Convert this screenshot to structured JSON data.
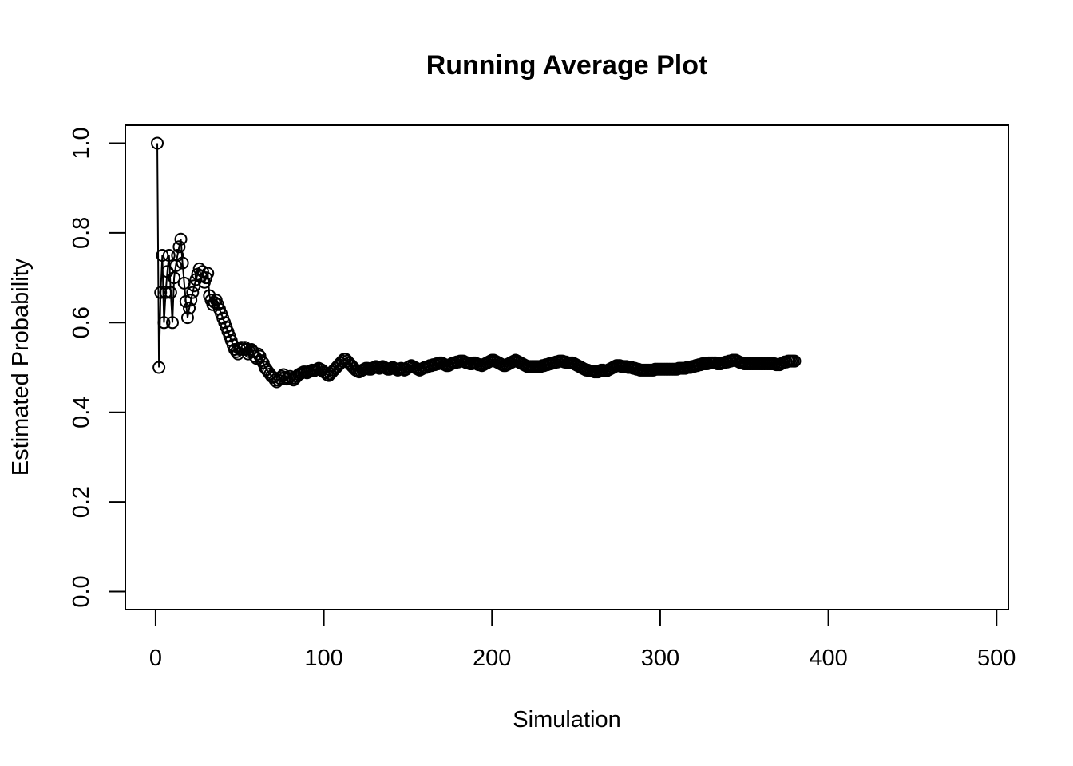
{
  "chart_data": {
    "type": "line",
    "title": "Running Average Plot",
    "xlabel": "Simulation",
    "ylabel": "Estimated Probability",
    "xlim": [
      -18,
      507
    ],
    "ylim": [
      -0.04,
      1.04
    ],
    "xticks": [
      0,
      100,
      200,
      300,
      400,
      500
    ],
    "yticks": [
      0.0,
      0.2,
      0.4,
      0.6,
      0.8,
      1.0
    ],
    "xtick_labels": [
      "0",
      "100",
      "200",
      "300",
      "400",
      "500"
    ],
    "ytick_labels": [
      "0.0",
      "0.2",
      "0.4",
      "0.6",
      "0.8",
      "1.0"
    ],
    "grid": false,
    "legend": "none",
    "marker": "open-circle",
    "x_start": 1,
    "y": [
      1.0,
      0.5,
      0.667,
      0.75,
      0.6,
      0.667,
      0.714,
      0.75,
      0.667,
      0.6,
      0.7,
      0.727,
      0.75,
      0.769,
      0.786,
      0.733,
      0.688,
      0.647,
      0.611,
      0.632,
      0.65,
      0.667,
      0.682,
      0.696,
      0.708,
      0.72,
      0.704,
      0.714,
      0.69,
      0.7,
      0.71,
      0.66,
      0.65,
      0.64,
      0.645,
      0.65,
      0.64,
      0.63,
      0.62,
      0.61,
      0.6,
      0.59,
      0.58,
      0.57,
      0.56,
      0.55,
      0.54,
      0.535,
      0.53,
      0.54,
      0.545,
      0.54,
      0.545,
      0.54,
      0.53,
      0.535,
      0.54,
      0.535,
      0.525,
      0.52,
      0.53,
      0.525,
      0.515,
      0.51,
      0.5,
      0.495,
      0.49,
      0.485,
      0.48,
      0.478,
      0.472,
      0.468,
      0.472,
      0.476,
      0.48,
      0.484,
      0.478,
      0.474,
      0.476,
      0.48,
      0.476,
      0.472,
      0.476,
      0.48,
      0.484,
      0.486,
      0.488,
      0.49,
      0.49,
      0.488,
      0.49,
      0.492,
      0.494,
      0.492,
      0.494,
      0.496,
      0.498,
      0.496,
      0.494,
      0.49,
      0.488,
      0.484,
      0.482,
      0.486,
      0.49,
      0.494,
      0.498,
      0.502,
      0.506,
      0.51,
      0.514,
      0.518,
      0.518,
      0.514,
      0.51,
      0.506,
      0.502,
      0.498,
      0.494,
      0.492,
      0.49,
      0.492,
      0.494,
      0.496,
      0.498,
      0.498,
      0.496,
      0.496,
      0.498,
      0.5,
      0.502,
      0.5,
      0.498,
      0.5,
      0.502,
      0.5,
      0.498,
      0.496,
      0.496,
      0.498,
      0.5,
      0.498,
      0.496,
      0.494,
      0.496,
      0.498,
      0.496,
      0.494,
      0.496,
      0.5,
      0.502,
      0.504,
      0.502,
      0.5,
      0.498,
      0.496,
      0.494,
      0.496,
      0.498,
      0.5,
      0.5,
      0.502,
      0.504,
      0.504,
      0.506,
      0.506,
      0.508,
      0.508,
      0.51,
      0.51,
      0.508,
      0.506,
      0.504,
      0.504,
      0.506,
      0.508,
      0.51,
      0.51,
      0.512,
      0.512,
      0.514,
      0.514,
      0.514,
      0.512,
      0.51,
      0.51,
      0.508,
      0.508,
      0.51,
      0.51,
      0.508,
      0.506,
      0.506,
      0.504,
      0.506,
      0.508,
      0.51,
      0.512,
      0.514,
      0.516,
      0.516,
      0.514,
      0.512,
      0.51,
      0.508,
      0.506,
      0.504,
      0.504,
      0.506,
      0.508,
      0.51,
      0.512,
      0.514,
      0.516,
      0.514,
      0.512,
      0.51,
      0.508,
      0.506,
      0.504,
      0.502,
      0.502,
      0.502,
      0.502,
      0.502,
      0.502,
      0.502,
      0.502,
      0.502,
      0.504,
      0.504,
      0.506,
      0.506,
      0.508,
      0.508,
      0.51,
      0.51,
      0.512,
      0.512,
      0.514,
      0.514,
      0.514,
      0.512,
      0.512,
      0.51,
      0.51,
      0.51,
      0.51,
      0.508,
      0.506,
      0.504,
      0.502,
      0.5,
      0.498,
      0.496,
      0.494,
      0.494,
      0.492,
      0.492,
      0.492,
      0.49,
      0.49,
      0.49,
      0.492,
      0.494,
      0.494,
      0.492,
      0.492,
      0.494,
      0.496,
      0.498,
      0.5,
      0.502,
      0.504,
      0.504,
      0.504,
      0.502,
      0.502,
      0.502,
      0.502,
      0.5,
      0.5,
      0.5,
      0.498,
      0.498,
      0.496,
      0.496,
      0.494,
      0.494,
      0.494,
      0.494,
      0.494,
      0.494,
      0.494,
      0.494,
      0.494,
      0.496,
      0.496,
      0.496,
      0.496,
      0.496,
      0.496,
      0.496,
      0.496,
      0.496,
      0.496,
      0.496,
      0.496,
      0.496,
      0.496,
      0.498,
      0.498,
      0.498,
      0.498,
      0.498,
      0.5,
      0.5,
      0.5,
      0.502,
      0.502,
      0.504,
      0.504,
      0.506,
      0.506,
      0.508,
      0.508,
      0.508,
      0.508,
      0.51,
      0.51,
      0.51,
      0.51,
      0.51,
      0.508,
      0.508,
      0.508,
      0.51,
      0.51,
      0.512,
      0.512,
      0.514,
      0.514,
      0.516,
      0.516,
      0.516,
      0.514,
      0.512,
      0.51,
      0.51,
      0.508,
      0.508,
      0.508,
      0.508,
      0.508,
      0.508,
      0.508,
      0.508,
      0.508,
      0.508,
      0.508,
      0.508,
      0.508,
      0.508,
      0.508,
      0.508,
      0.508,
      0.508,
      0.508,
      0.506,
      0.506,
      0.506,
      0.508,
      0.51,
      0.512,
      0.512,
      0.514,
      0.514,
      0.514,
      0.514,
      0.514
    ]
  }
}
